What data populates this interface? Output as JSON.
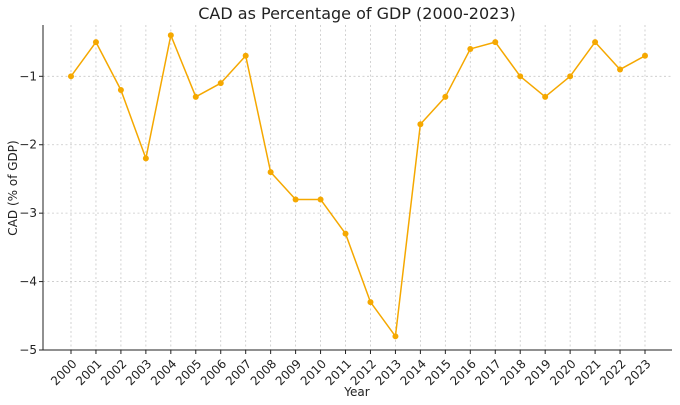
{
  "chart_data": {
    "type": "line",
    "title": "CAD as Percentage of GDP (2000-2023)",
    "xlabel": "Year",
    "ylabel": "CAD (% of GDP)",
    "x": [
      "2000",
      "2001",
      "2002",
      "2003",
      "2004",
      "2005",
      "2006",
      "2007",
      "2008",
      "2009",
      "2010",
      "2011",
      "2012",
      "2013",
      "2014",
      "2015",
      "2016",
      "2017",
      "2018",
      "2019",
      "2020",
      "2021",
      "2022",
      "2023"
    ],
    "series": [
      {
        "name": "CAD (% of GDP)",
        "color": "#f5a800",
        "values": [
          -1.0,
          -0.5,
          -1.2,
          -2.2,
          -0.4,
          -1.3,
          -1.1,
          -0.7,
          -2.4,
          -2.8,
          -2.8,
          -3.3,
          -4.3,
          -4.8,
          -1.7,
          -1.3,
          -0.6,
          -0.5,
          -1.0,
          -1.3,
          -1.0,
          -0.5,
          -0.9,
          -0.7
        ]
      }
    ],
    "ylim": [
      -5.0,
      -0.25
    ],
    "yticks": [
      -5,
      -4,
      -3,
      -2,
      -1
    ],
    "ytick_labels": [
      "−5",
      "−4",
      "−3",
      "−2",
      "−1"
    ],
    "grid": true,
    "legend": "none"
  }
}
